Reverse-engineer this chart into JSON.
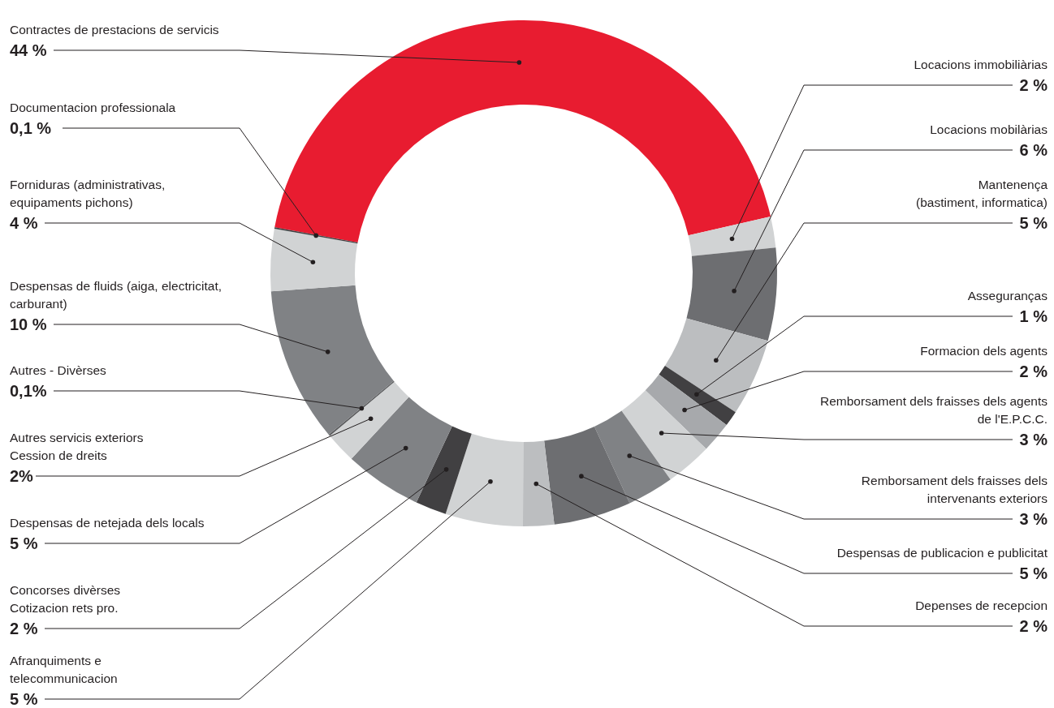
{
  "chart_data": {
    "type": "donut",
    "categories": [
      "Contractes de prestacions de servicis",
      "Locacions immobiliàrias",
      "Locacions mobilàrias",
      "Mantenença\n(bastiment, informatica)",
      "Asseguranças",
      "Formacion dels agents",
      "Remborsament dels fraisses dels agents\nde l'E.P.C.C.",
      "Remborsament dels fraisses dels\nintervenants exteriors",
      "Despensas de publicacion e publicitat",
      "Depenses de recepcion",
      "Afranquiments e\ntelecommunicacion",
      "Concorses divèrses\nCotizacion rets pro.",
      "Despensas de netejada dels locals",
      "Autres servicis exteriors\nCession de dreits",
      "Autres - Divèrses",
      "Despensas de fluids (aiga, electricitat,\ncarburant)",
      "Forniduras (administrativas,\nequipaments pichons)",
      "Documentacion professionala"
    ],
    "values": [
      44,
      2,
      6,
      5,
      1,
      2,
      3,
      3,
      5,
      2,
      5,
      2,
      5,
      2,
      0.1,
      10,
      4,
      0.1
    ],
    "value_labels": [
      "44 %",
      "2 %",
      "6 %",
      "5 %",
      "1 %",
      "2 %",
      "3 %",
      "3 %",
      "5 %",
      "2 %",
      "5 %",
      "2 %",
      "5 %",
      "2%",
      "0,1%",
      "10 %",
      "4 %",
      "0,1 %"
    ],
    "colors": [
      "#e81c30",
      "#d1d3d4",
      "#6d6e71",
      "#bcbec0",
      "#414042",
      "#a7a9ac",
      "#d1d3d4",
      "#808285",
      "#6d6e71",
      "#bcbec0",
      "#d1d3d4",
      "#414042",
      "#808285",
      "#d1d3d4",
      "#58595b",
      "#808285",
      "#d1d3d4",
      "#414042"
    ]
  }
}
